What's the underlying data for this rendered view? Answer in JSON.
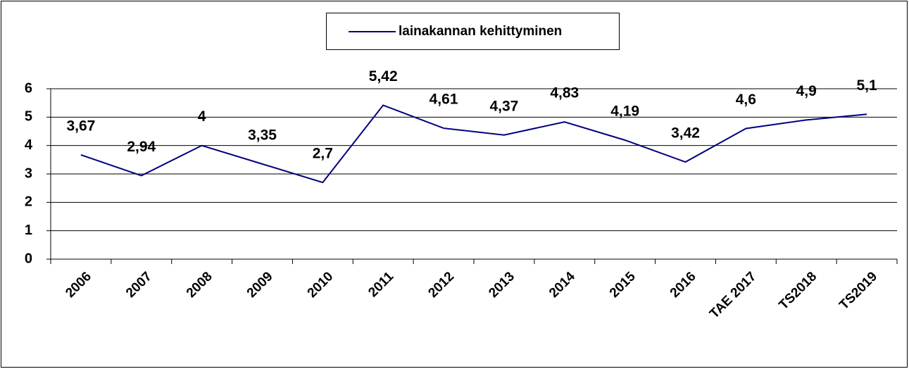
{
  "chart_data": {
    "type": "line",
    "categories": [
      "2006",
      "2007",
      "2008",
      "2009",
      "2010",
      "2011",
      "2012",
      "2013",
      "2014",
      "2015",
      "2016",
      "TAE 2017",
      "TS2018",
      "TS2019"
    ],
    "series": [
      {
        "name": "lainakannan kehittyminen",
        "color": "#000080",
        "values": [
          3.67,
          2.94,
          4,
          3.35,
          2.7,
          5.42,
          4.61,
          4.37,
          4.83,
          4.19,
          3.42,
          4.6,
          4.9,
          5.1
        ],
        "value_labels": [
          "3,67",
          "2,94",
          "4",
          "3,35",
          "2,7",
          "5,42",
          "4,61",
          "4,37",
          "4,83",
          "4,19",
          "3,42",
          "4,6",
          "4,9",
          "5,1"
        ]
      }
    ],
    "ylim": [
      0,
      6
    ],
    "yticks": [
      0,
      1,
      2,
      3,
      4,
      5,
      6
    ],
    "grid": true,
    "legend": "top"
  }
}
